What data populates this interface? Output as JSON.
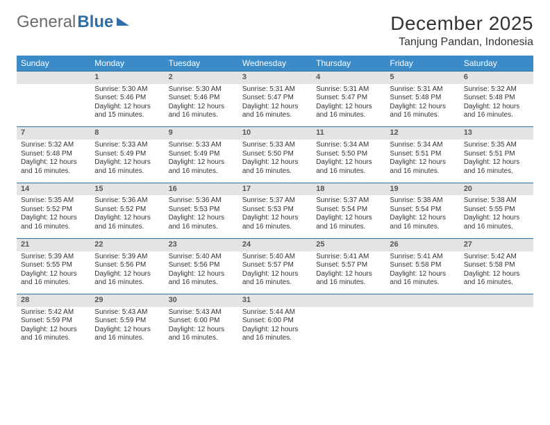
{
  "logo": {
    "part1": "General",
    "part2": "Blue"
  },
  "title": "December 2025",
  "location": "Tanjung Pandan, Indonesia",
  "colors": {
    "header_bg": "#3b8bc9",
    "row_accent": "#2f6fa8",
    "daynum_bg": "#e4e4e4",
    "text": "#333333",
    "logo_gray": "#6b6b6b",
    "logo_blue": "#2f6fa8",
    "page_bg": "#ffffff"
  },
  "weekdays": [
    "Sunday",
    "Monday",
    "Tuesday",
    "Wednesday",
    "Thursday",
    "Friday",
    "Saturday"
  ],
  "weeks": [
    {
      "nums": [
        "",
        "1",
        "2",
        "3",
        "4",
        "5",
        "6"
      ],
      "cells": [
        null,
        {
          "sr": "Sunrise: 5:30 AM",
          "ss": "Sunset: 5:46 PM",
          "d1": "Daylight: 12 hours",
          "d2": "and 15 minutes."
        },
        {
          "sr": "Sunrise: 5:30 AM",
          "ss": "Sunset: 5:46 PM",
          "d1": "Daylight: 12 hours",
          "d2": "and 16 minutes."
        },
        {
          "sr": "Sunrise: 5:31 AM",
          "ss": "Sunset: 5:47 PM",
          "d1": "Daylight: 12 hours",
          "d2": "and 16 minutes."
        },
        {
          "sr": "Sunrise: 5:31 AM",
          "ss": "Sunset: 5:47 PM",
          "d1": "Daylight: 12 hours",
          "d2": "and 16 minutes."
        },
        {
          "sr": "Sunrise: 5:31 AM",
          "ss": "Sunset: 5:48 PM",
          "d1": "Daylight: 12 hours",
          "d2": "and 16 minutes."
        },
        {
          "sr": "Sunrise: 5:32 AM",
          "ss": "Sunset: 5:48 PM",
          "d1": "Daylight: 12 hours",
          "d2": "and 16 minutes."
        }
      ]
    },
    {
      "nums": [
        "7",
        "8",
        "9",
        "10",
        "11",
        "12",
        "13"
      ],
      "cells": [
        {
          "sr": "Sunrise: 5:32 AM",
          "ss": "Sunset: 5:48 PM",
          "d1": "Daylight: 12 hours",
          "d2": "and 16 minutes."
        },
        {
          "sr": "Sunrise: 5:33 AM",
          "ss": "Sunset: 5:49 PM",
          "d1": "Daylight: 12 hours",
          "d2": "and 16 minutes."
        },
        {
          "sr": "Sunrise: 5:33 AM",
          "ss": "Sunset: 5:49 PM",
          "d1": "Daylight: 12 hours",
          "d2": "and 16 minutes."
        },
        {
          "sr": "Sunrise: 5:33 AM",
          "ss": "Sunset: 5:50 PM",
          "d1": "Daylight: 12 hours",
          "d2": "and 16 minutes."
        },
        {
          "sr": "Sunrise: 5:34 AM",
          "ss": "Sunset: 5:50 PM",
          "d1": "Daylight: 12 hours",
          "d2": "and 16 minutes."
        },
        {
          "sr": "Sunrise: 5:34 AM",
          "ss": "Sunset: 5:51 PM",
          "d1": "Daylight: 12 hours",
          "d2": "and 16 minutes."
        },
        {
          "sr": "Sunrise: 5:35 AM",
          "ss": "Sunset: 5:51 PM",
          "d1": "Daylight: 12 hours",
          "d2": "and 16 minutes."
        }
      ]
    },
    {
      "nums": [
        "14",
        "15",
        "16",
        "17",
        "18",
        "19",
        "20"
      ],
      "cells": [
        {
          "sr": "Sunrise: 5:35 AM",
          "ss": "Sunset: 5:52 PM",
          "d1": "Daylight: 12 hours",
          "d2": "and 16 minutes."
        },
        {
          "sr": "Sunrise: 5:36 AM",
          "ss": "Sunset: 5:52 PM",
          "d1": "Daylight: 12 hours",
          "d2": "and 16 minutes."
        },
        {
          "sr": "Sunrise: 5:36 AM",
          "ss": "Sunset: 5:53 PM",
          "d1": "Daylight: 12 hours",
          "d2": "and 16 minutes."
        },
        {
          "sr": "Sunrise: 5:37 AM",
          "ss": "Sunset: 5:53 PM",
          "d1": "Daylight: 12 hours",
          "d2": "and 16 minutes."
        },
        {
          "sr": "Sunrise: 5:37 AM",
          "ss": "Sunset: 5:54 PM",
          "d1": "Daylight: 12 hours",
          "d2": "and 16 minutes."
        },
        {
          "sr": "Sunrise: 5:38 AM",
          "ss": "Sunset: 5:54 PM",
          "d1": "Daylight: 12 hours",
          "d2": "and 16 minutes."
        },
        {
          "sr": "Sunrise: 5:38 AM",
          "ss": "Sunset: 5:55 PM",
          "d1": "Daylight: 12 hours",
          "d2": "and 16 minutes."
        }
      ]
    },
    {
      "nums": [
        "21",
        "22",
        "23",
        "24",
        "25",
        "26",
        "27"
      ],
      "cells": [
        {
          "sr": "Sunrise: 5:39 AM",
          "ss": "Sunset: 5:55 PM",
          "d1": "Daylight: 12 hours",
          "d2": "and 16 minutes."
        },
        {
          "sr": "Sunrise: 5:39 AM",
          "ss": "Sunset: 5:56 PM",
          "d1": "Daylight: 12 hours",
          "d2": "and 16 minutes."
        },
        {
          "sr": "Sunrise: 5:40 AM",
          "ss": "Sunset: 5:56 PM",
          "d1": "Daylight: 12 hours",
          "d2": "and 16 minutes."
        },
        {
          "sr": "Sunrise: 5:40 AM",
          "ss": "Sunset: 5:57 PM",
          "d1": "Daylight: 12 hours",
          "d2": "and 16 minutes."
        },
        {
          "sr": "Sunrise: 5:41 AM",
          "ss": "Sunset: 5:57 PM",
          "d1": "Daylight: 12 hours",
          "d2": "and 16 minutes."
        },
        {
          "sr": "Sunrise: 5:41 AM",
          "ss": "Sunset: 5:58 PM",
          "d1": "Daylight: 12 hours",
          "d2": "and 16 minutes."
        },
        {
          "sr": "Sunrise: 5:42 AM",
          "ss": "Sunset: 5:58 PM",
          "d1": "Daylight: 12 hours",
          "d2": "and 16 minutes."
        }
      ]
    },
    {
      "nums": [
        "28",
        "29",
        "30",
        "31",
        "",
        "",
        ""
      ],
      "cells": [
        {
          "sr": "Sunrise: 5:42 AM",
          "ss": "Sunset: 5:59 PM",
          "d1": "Daylight: 12 hours",
          "d2": "and 16 minutes."
        },
        {
          "sr": "Sunrise: 5:43 AM",
          "ss": "Sunset: 5:59 PM",
          "d1": "Daylight: 12 hours",
          "d2": "and 16 minutes."
        },
        {
          "sr": "Sunrise: 5:43 AM",
          "ss": "Sunset: 6:00 PM",
          "d1": "Daylight: 12 hours",
          "d2": "and 16 minutes."
        },
        {
          "sr": "Sunrise: 5:44 AM",
          "ss": "Sunset: 6:00 PM",
          "d1": "Daylight: 12 hours",
          "d2": "and 16 minutes."
        },
        null,
        null,
        null
      ]
    }
  ]
}
